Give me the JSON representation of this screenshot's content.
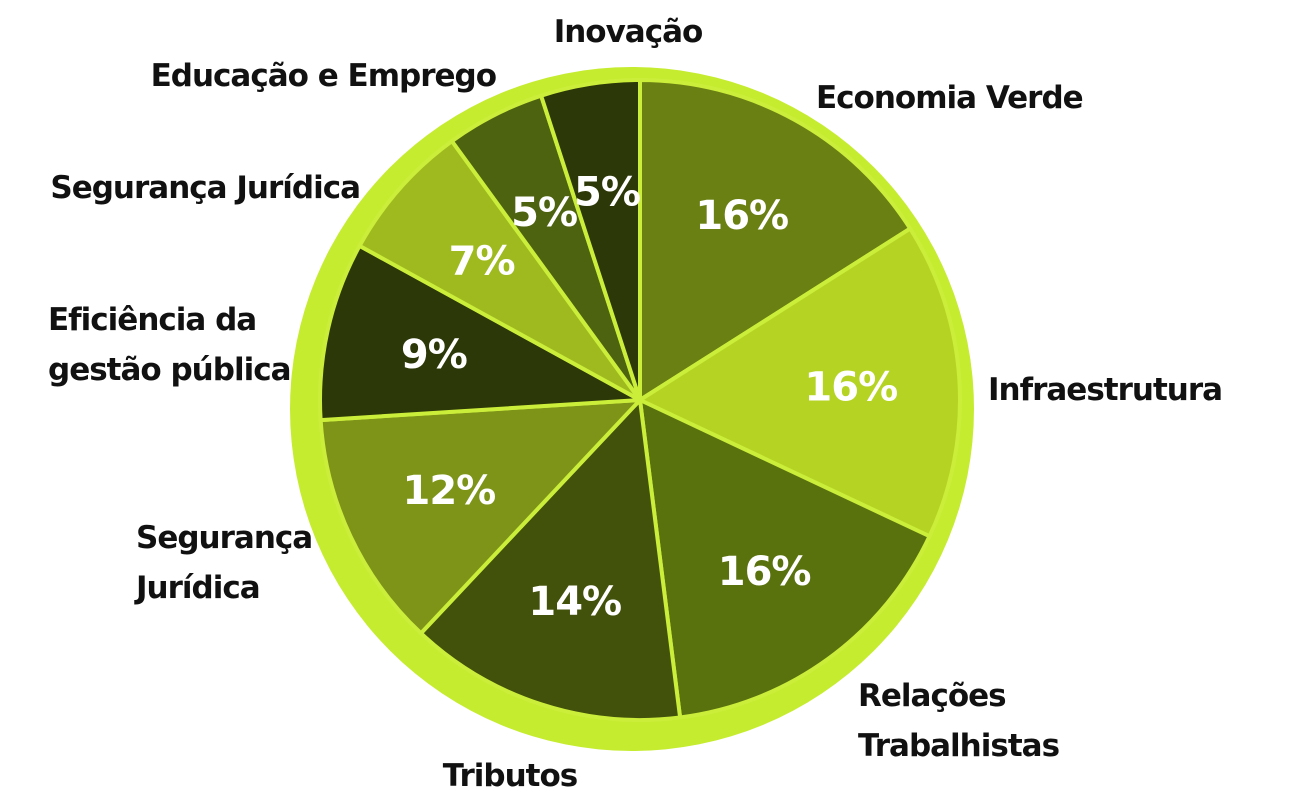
{
  "chart_data": {
    "type": "pie",
    "title": "",
    "slices": [
      {
        "label": "Economia Verde",
        "value": 16,
        "pct_label": "16%",
        "color": "#6a8012"
      },
      {
        "label": "Infraestrutura",
        "value": 16,
        "pct_label": "16%",
        "color": "#b5d323"
      },
      {
        "label": "Relações Trabalhistas",
        "value": 16,
        "pct_label": "16%",
        "color": "#5a720e"
      },
      {
        "label": "Tributos",
        "value": 14,
        "pct_label": "14%",
        "color": "#42520b"
      },
      {
        "label": "Segurança Jurídica",
        "value": 12,
        "pct_label": "12%",
        "color": "#7d9418"
      },
      {
        "label": "Eficiência da gestão pública",
        "value": 9,
        "pct_label": "9%",
        "color": "#2c3807"
      },
      {
        "label": "Segurança Jurídica",
        "value": 7,
        "pct_label": "7%",
        "color": "#9fba1e"
      },
      {
        "label": "Educação e Emprego",
        "value": 5,
        "pct_label": "5%",
        "color": "#4e6310"
      },
      {
        "label": "Inovação",
        "value": 5,
        "pct_label": "5%",
        "color": "#2c3807"
      }
    ],
    "start": "top",
    "direction": "clockwise",
    "legend": "none"
  },
  "colors": {
    "rim": "#c5ec2f",
    "divider": "#cbee3a",
    "percent_text": "#ffffff",
    "label_text": "#111111"
  }
}
